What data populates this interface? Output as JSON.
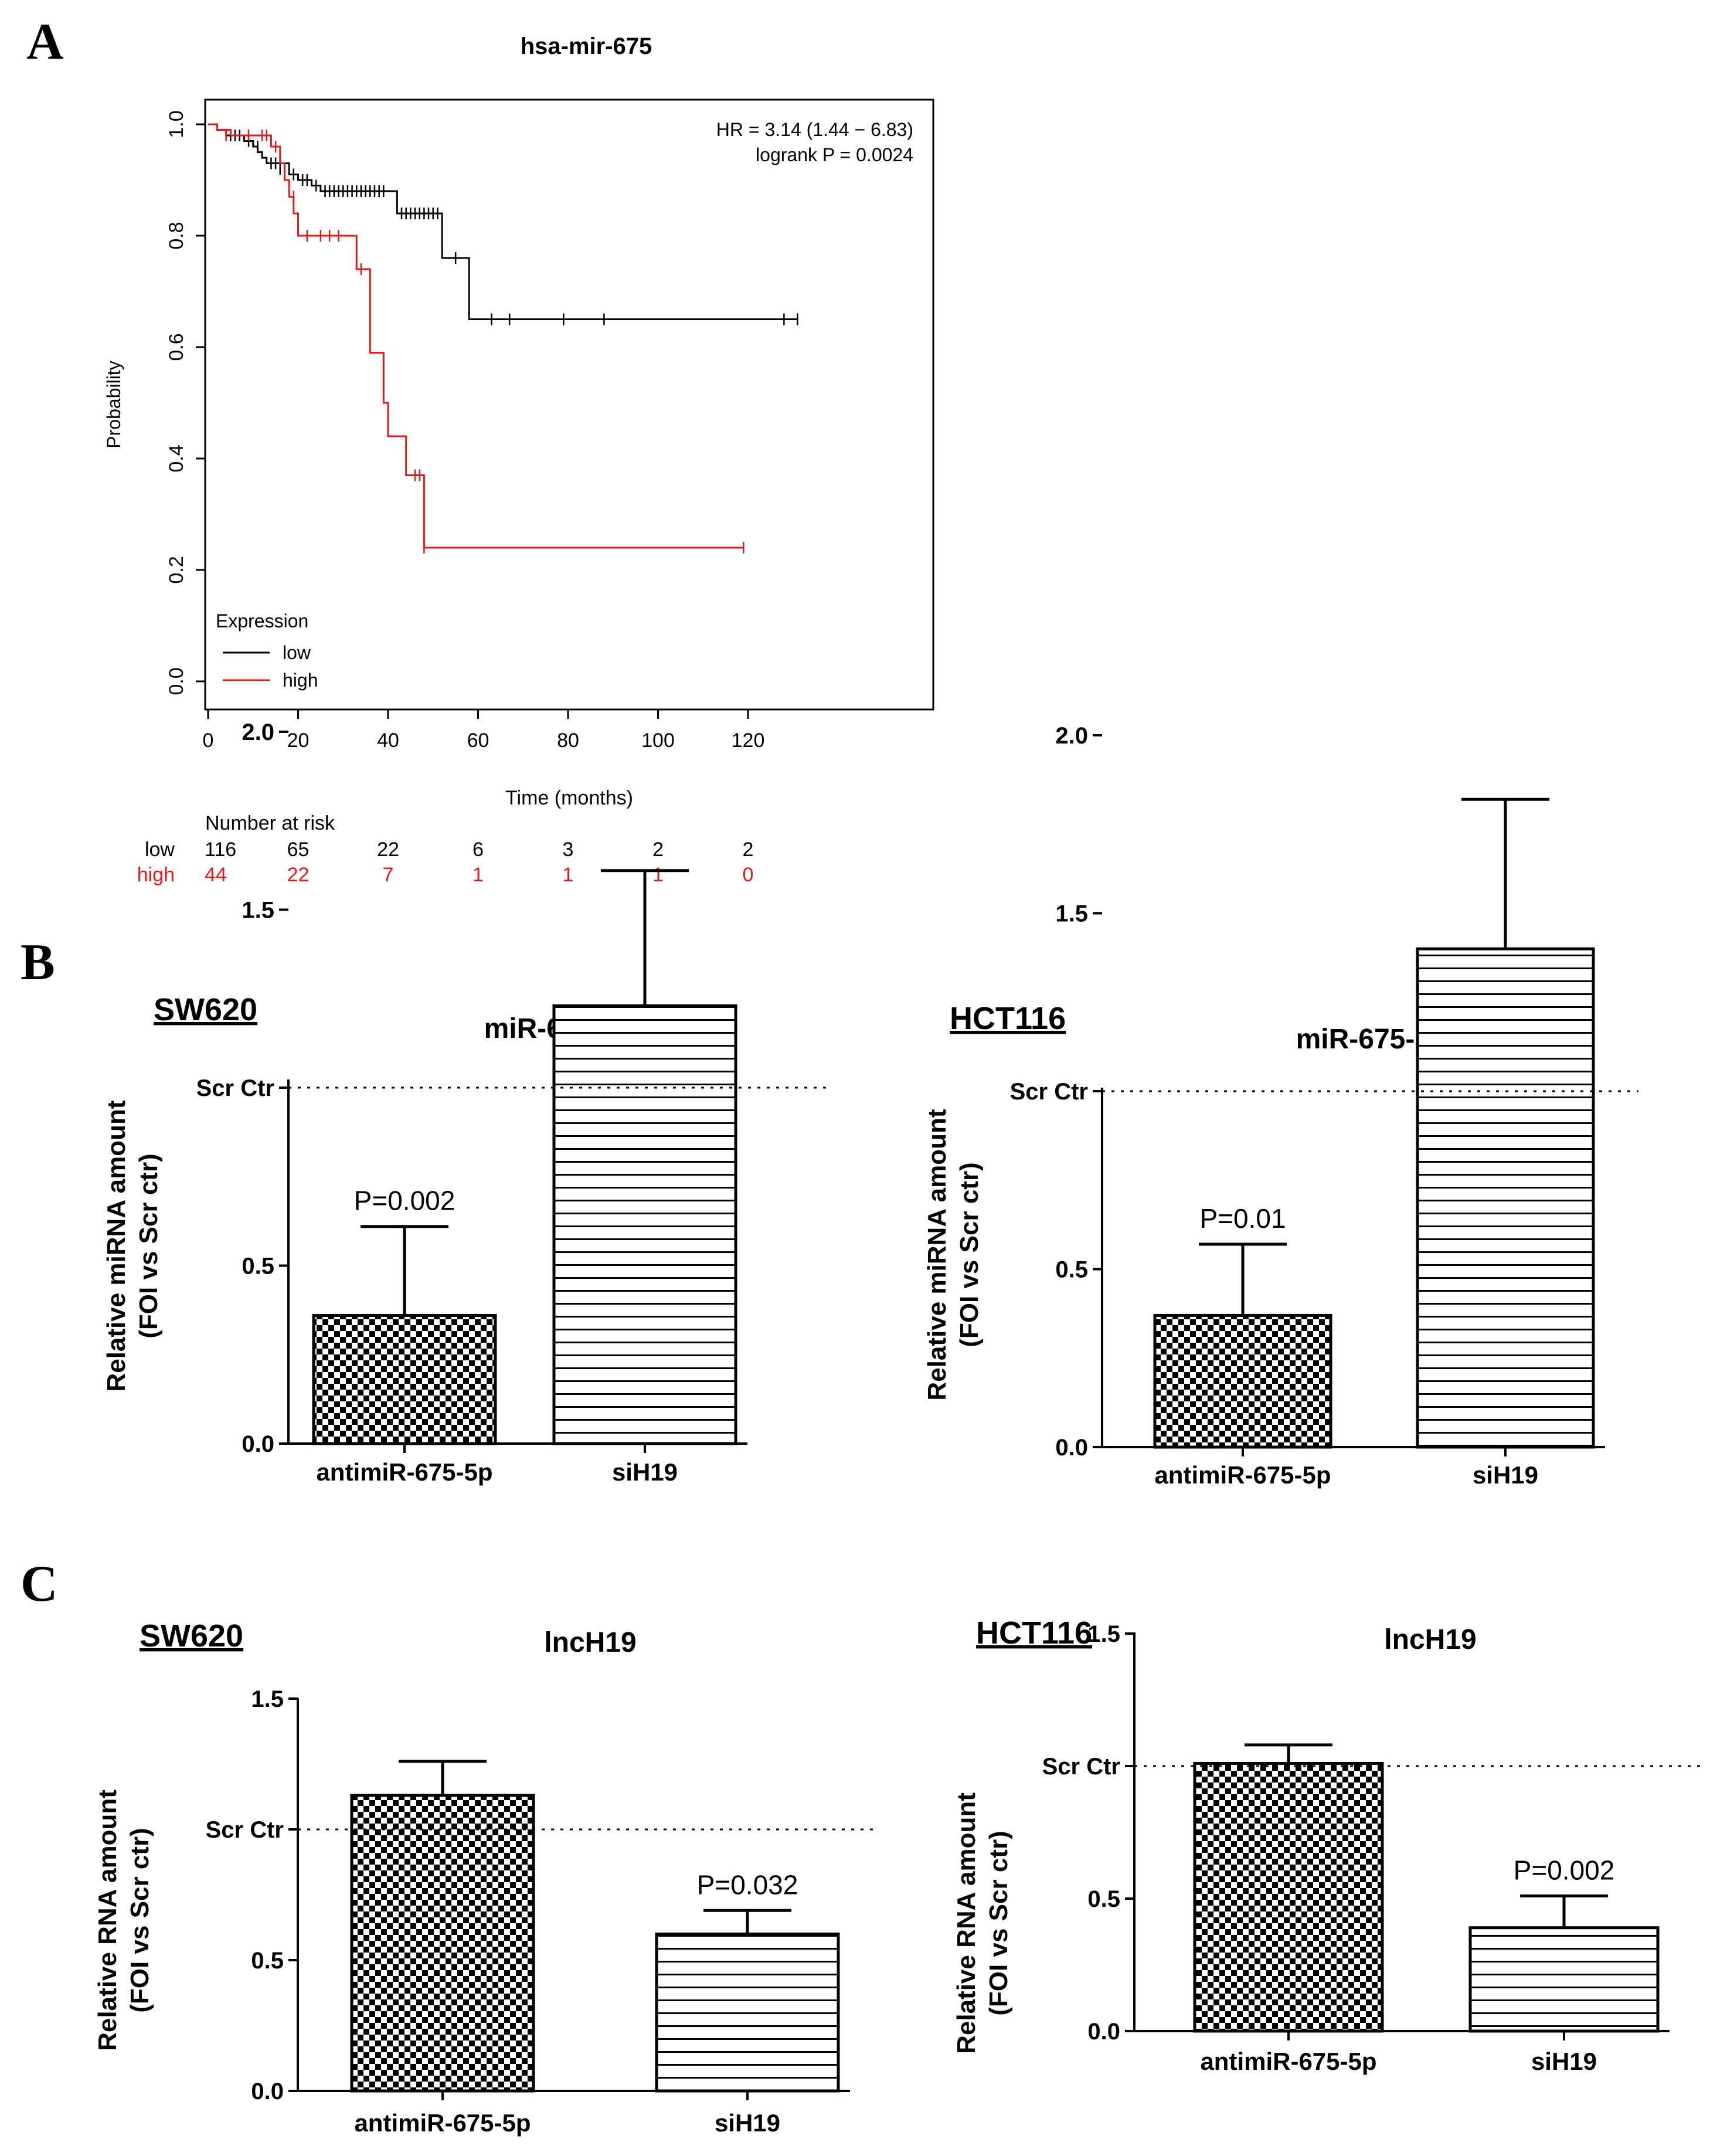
{
  "panel_labels": [
    "A",
    "B",
    "C"
  ],
  "chart_data": [
    {
      "type": "line",
      "id": "km",
      "title": "hsa-mir-675",
      "xlabel": "Time (months)",
      "ylabel": "Probability",
      "xlim": [
        0,
        132
      ],
      "ylim": [
        0,
        1
      ],
      "xticks": [
        0,
        20,
        40,
        60,
        80,
        100,
        120
      ],
      "yticks": [
        0.0,
        0.2,
        0.4,
        0.6,
        0.8,
        1.0
      ],
      "annotation_lines": [
        "HR = 3.14 (1.44 − 6.83)",
        "logrank P = 0.0024"
      ],
      "legend": {
        "title": "Expression",
        "position": "bottom-left"
      },
      "series": [
        {
          "name": "low",
          "color": "#000000",
          "steps": [
            [
              0,
              1.0
            ],
            [
              2,
              0.99
            ],
            [
              4,
              0.98
            ],
            [
              8,
              0.97
            ],
            [
              10,
              0.96
            ],
            [
              11,
              0.95
            ],
            [
              12,
              0.94
            ],
            [
              13,
              0.93
            ],
            [
              18,
              0.91
            ],
            [
              20,
              0.9
            ],
            [
              23,
              0.89
            ],
            [
              25,
              0.88
            ],
            [
              42,
              0.84
            ],
            [
              52,
              0.76
            ],
            [
              58,
              0.65
            ],
            [
              131,
              0.65
            ]
          ],
          "censored": [
            [
              5,
              0.98
            ],
            [
              6,
              0.98
            ],
            [
              7,
              0.98
            ],
            [
              9,
              0.97
            ],
            [
              11,
              0.96
            ],
            [
              14,
              0.93
            ],
            [
              15,
              0.93
            ],
            [
              16,
              0.92
            ],
            [
              19,
              0.91
            ],
            [
              21,
              0.9
            ],
            [
              22,
              0.9
            ],
            [
              24,
              0.89
            ],
            [
              26,
              0.88
            ],
            [
              27,
              0.88
            ],
            [
              28,
              0.88
            ],
            [
              29,
              0.88
            ],
            [
              30,
              0.88
            ],
            [
              31,
              0.88
            ],
            [
              32,
              0.88
            ],
            [
              33,
              0.88
            ],
            [
              34,
              0.88
            ],
            [
              35,
              0.88
            ],
            [
              36,
              0.88
            ],
            [
              37,
              0.88
            ],
            [
              38,
              0.88
            ],
            [
              39,
              0.88
            ],
            [
              43,
              0.84
            ],
            [
              44,
              0.84
            ],
            [
              45,
              0.84
            ],
            [
              46,
              0.84
            ],
            [
              47,
              0.84
            ],
            [
              48,
              0.84
            ],
            [
              49,
              0.84
            ],
            [
              50,
              0.84
            ],
            [
              51,
              0.84
            ],
            [
              55,
              0.76
            ],
            [
              63,
              0.65
            ],
            [
              67,
              0.65
            ],
            [
              79,
              0.65
            ],
            [
              88,
              0.65
            ],
            [
              128,
              0.65
            ],
            [
              131,
              0.65
            ]
          ]
        },
        {
          "name": "high",
          "color": "#e41a1c",
          "steps": [
            [
              0,
              1.0
            ],
            [
              2,
              0.99
            ],
            [
              5,
              0.98
            ],
            [
              14,
              0.96
            ],
            [
              16,
              0.93
            ],
            [
              17,
              0.9
            ],
            [
              18,
              0.87
            ],
            [
              19,
              0.84
            ],
            [
              20,
              0.8
            ],
            [
              33,
              0.74
            ],
            [
              36,
              0.59
            ],
            [
              39,
              0.5
            ],
            [
              40,
              0.44
            ],
            [
              44,
              0.37
            ],
            [
              48,
              0.24
            ],
            [
              119,
              0.24
            ]
          ],
          "censored": [
            [
              4,
              0.98
            ],
            [
              9,
              0.98
            ],
            [
              12,
              0.98
            ],
            [
              13,
              0.98
            ],
            [
              15,
              0.96
            ],
            [
              19,
              0.87
            ],
            [
              22,
              0.8
            ],
            [
              25,
              0.8
            ],
            [
              27,
              0.8
            ],
            [
              29,
              0.8
            ],
            [
              34,
              0.74
            ],
            [
              46,
              0.37
            ],
            [
              47,
              0.37
            ],
            [
              48,
              0.24
            ],
            [
              119,
              0.24
            ]
          ]
        }
      ],
      "risk_table": {
        "title": "Number at risk",
        "times": [
          0,
          20,
          40,
          60,
          80,
          100,
          120
        ],
        "rows": [
          {
            "name": "low",
            "color": "#000000",
            "values": [
              "116",
              "65",
              "22",
              "6",
              "3",
              "2",
              "2"
            ]
          },
          {
            "name": "high",
            "color": "#e41a1c",
            "values": [
              "44",
              "22",
              "7",
              "1",
              "1",
              "1",
              "0"
            ]
          }
        ]
      }
    },
    {
      "type": "bar",
      "id": "b1",
      "cell_line": "SW620",
      "title": "miR-675-5p",
      "ylabel_lines": [
        "Relative miRNA amount",
        "(FOI vs Scr ctr)"
      ],
      "ylim": [
        0,
        2.0
      ],
      "yticks": [
        0.0,
        0.5,
        1.5,
        2.0
      ],
      "ytick_labels": [
        "0.0",
        "0.5",
        "1.5",
        "2.0"
      ],
      "reference_line": {
        "value": 1.0,
        "label": "Scr Ctr"
      },
      "categories": [
        "antimiR-675-5p",
        "siH19"
      ],
      "values": [
        0.36,
        1.23
      ],
      "errors": [
        0.25,
        0.38
      ],
      "patterns": [
        "checker",
        "stripes"
      ],
      "pvalues": [
        "P=0.002",
        ""
      ]
    },
    {
      "type": "bar",
      "id": "b2",
      "cell_line": "HCT116",
      "title": "miR-675-5p",
      "ylabel_lines": [
        "Relative miRNA amount",
        "(FOI vs Scr ctr)"
      ],
      "ylim": [
        0,
        2.0
      ],
      "yticks": [
        0.0,
        0.5,
        1.5,
        2.0
      ],
      "ytick_labels": [
        "0.0",
        "0.5",
        "1.5",
        "2.0"
      ],
      "reference_line": {
        "value": 1.0,
        "label": "Scr Ctr"
      },
      "categories": [
        "antimiR-675-5p",
        "siH19"
      ],
      "values": [
        0.37,
        1.4
      ],
      "errors": [
        0.2,
        0.42
      ],
      "patterns": [
        "checker",
        "stripes"
      ],
      "pvalues": [
        "P=0.01",
        ""
      ]
    },
    {
      "type": "bar",
      "id": "c1",
      "cell_line": "SW620",
      "title": "lncH19",
      "ylabel_lines": [
        "Relative RNA amount",
        "(FOI vs Scr ctr)"
      ],
      "ylim": [
        0,
        1.5
      ],
      "yticks": [
        0.0,
        0.5,
        1.5
      ],
      "ytick_labels": [
        "0.0",
        "0.5",
        "1.5"
      ],
      "reference_line": {
        "value": 1.0,
        "label": "Scr Ctr"
      },
      "categories": [
        "antimiR-675-5p",
        "siH19"
      ],
      "values": [
        1.13,
        0.6
      ],
      "errors": [
        0.13,
        0.09
      ],
      "patterns": [
        "checker",
        "stripes"
      ],
      "pvalues": [
        "",
        "P=0.032"
      ]
    },
    {
      "type": "bar",
      "id": "c2",
      "cell_line": "HCT116",
      "title": "lncH19",
      "ylabel_lines": [
        "Relative RNA amount",
        "(FOI vs Scr ctr)"
      ],
      "ylim": [
        0,
        1.5
      ],
      "yticks": [
        0.0,
        0.5,
        1.5
      ],
      "ytick_labels": [
        "0.0",
        "0.5",
        "1.5"
      ],
      "reference_line": {
        "value": 1.0,
        "label": "Scr Ctr"
      },
      "categories": [
        "antimiR-675-5p",
        "siH19"
      ],
      "values": [
        1.01,
        0.39
      ],
      "errors": [
        0.07,
        0.12
      ],
      "patterns": [
        "checker",
        "stripes"
      ],
      "pvalues": [
        "",
        "P=0.002"
      ]
    }
  ]
}
